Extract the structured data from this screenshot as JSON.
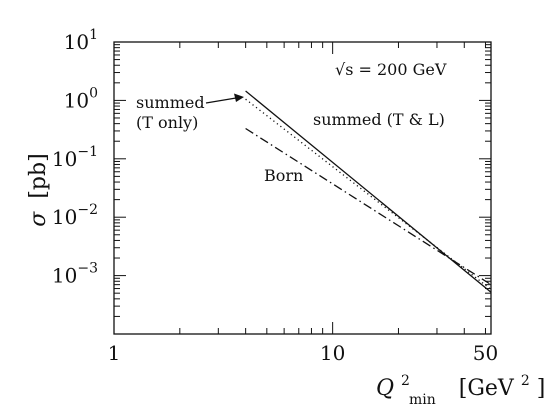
{
  "chart_data": {
    "type": "line",
    "xscale": "log",
    "yscale": "log",
    "xlim": [
      1,
      53
    ],
    "ylim": [
      0.0001,
      10
    ],
    "grid": false,
    "x_ticks": [
      {
        "value": 1,
        "label": "1"
      },
      {
        "value": 10,
        "label": "10"
      },
      {
        "value": 50,
        "label": "50"
      }
    ],
    "y_ticks": [
      {
        "value": 10,
        "base": "10",
        "exp": "1"
      },
      {
        "value": 1,
        "base": "10",
        "exp": "0"
      },
      {
        "value": 0.1,
        "base": "10",
        "exp": "−1"
      },
      {
        "value": 0.01,
        "base": "10",
        "exp": "−2"
      },
      {
        "value": 0.001,
        "base": "10",
        "exp": "−3"
      }
    ],
    "xlabel": {
      "main": "Q",
      "sup": "2",
      "sub": "min",
      "unit_pre": "[GeV",
      "unit_sup": "2",
      "unit_post": "]"
    },
    "ylabel": {
      "symbol": "σ",
      "unit": "[pb]"
    },
    "series": [
      {
        "key": "summed_tl",
        "style": "solid",
        "color": "#111111",
        "x": [
          4,
          53
        ],
        "y": [
          1.45,
          0.00052
        ]
      },
      {
        "key": "summed_t",
        "style": "dotted",
        "color": "#111111",
        "x": [
          4,
          53
        ],
        "y": [
          1.05,
          0.00058
        ]
      },
      {
        "key": "born",
        "style": "dashdot",
        "color": "#111111",
        "x": [
          4,
          53
        ],
        "y": [
          0.33,
          0.0007
        ]
      }
    ],
    "annotations": {
      "energy": {
        "pre": "√s = 200 GeV"
      },
      "summed_tl": "summed (T & L)",
      "summed_t_line1": "summed",
      "summed_t_line2": "(T only)",
      "born": "Born"
    }
  }
}
